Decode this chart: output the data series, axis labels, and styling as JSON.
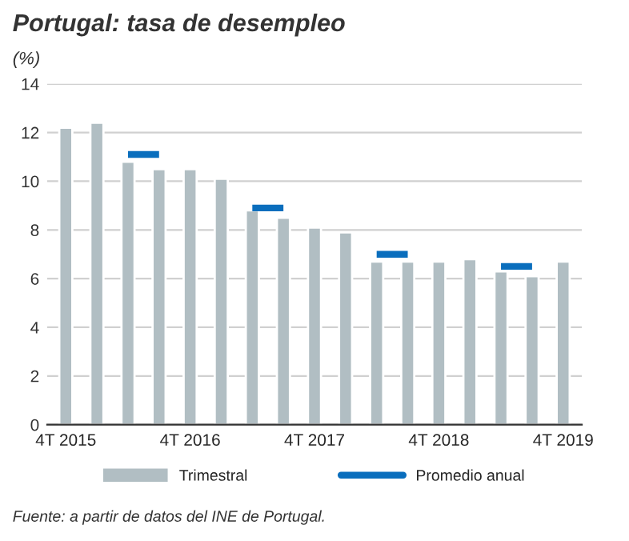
{
  "chart_data": {
    "type": "bar",
    "title": "Portugal: tasa de desempleo",
    "subtitle": "(%)",
    "categories": [
      "4T 2015",
      null,
      null,
      null,
      "4T 2016",
      null,
      null,
      null,
      "4T 2017",
      null,
      null,
      null,
      "4T 2018",
      null,
      null,
      null,
      "4T 2019"
    ],
    "series": [
      {
        "name": "Trimestral",
        "color": "#b1bec3",
        "values": [
          12.2,
          12.4,
          10.8,
          10.5,
          10.5,
          10.1,
          8.8,
          8.5,
          8.1,
          7.9,
          6.7,
          6.7,
          6.7,
          6.8,
          6.3,
          6.1,
          6.7
        ]
      },
      {
        "name": "Promedio anual",
        "type": "line",
        "color": "#0a6ebd",
        "values": [
          null,
          null,
          11.1,
          11.1,
          null,
          null,
          8.9,
          8.9,
          null,
          null,
          7.0,
          7.0,
          null,
          null,
          6.5,
          6.5,
          null
        ]
      }
    ],
    "ylim": [
      0,
      14
    ],
    "yticks": [
      0,
      2,
      4,
      6,
      8,
      10,
      12,
      14
    ],
    "grid": "y",
    "legend": "bottom",
    "annotations": [
      "Fuente: a partir de datos del INE de Portugal."
    ]
  }
}
